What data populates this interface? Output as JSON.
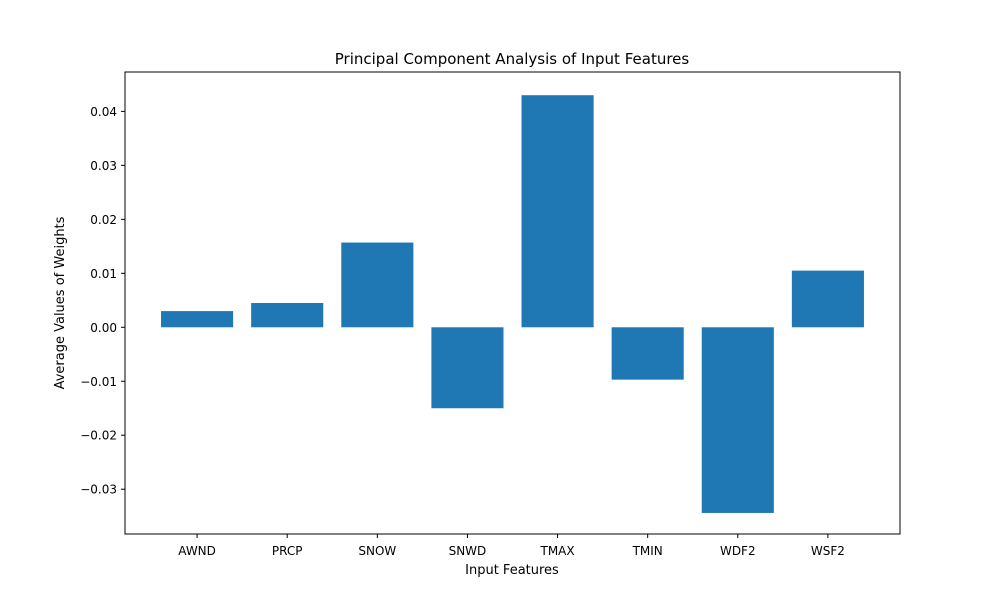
{
  "chart_data": {
    "type": "bar",
    "title": "Principal Component Analysis of Input Features",
    "xlabel": "Input Features",
    "ylabel": "Average Values of Weights",
    "categories": [
      "AWND",
      "PRCP",
      "SNOW",
      "SNWD",
      "TMAX",
      "TMIN",
      "WDF2",
      "WSF2"
    ],
    "values": [
      0.003,
      0.0045,
      0.0157,
      -0.015,
      0.043,
      -0.0097,
      -0.0344,
      0.0105
    ],
    "ylim": [
      -0.0383,
      0.0473
    ],
    "yticks": [
      -0.03,
      -0.02,
      -0.01,
      0.0,
      0.01,
      0.02,
      0.03,
      0.04
    ],
    "ytick_labels": [
      "−0.03",
      "−0.02",
      "−0.01",
      "0.00",
      "0.01",
      "0.02",
      "0.03",
      "0.04"
    ],
    "bar_color": "#1f77b4",
    "grid": false,
    "legend": "none"
  }
}
